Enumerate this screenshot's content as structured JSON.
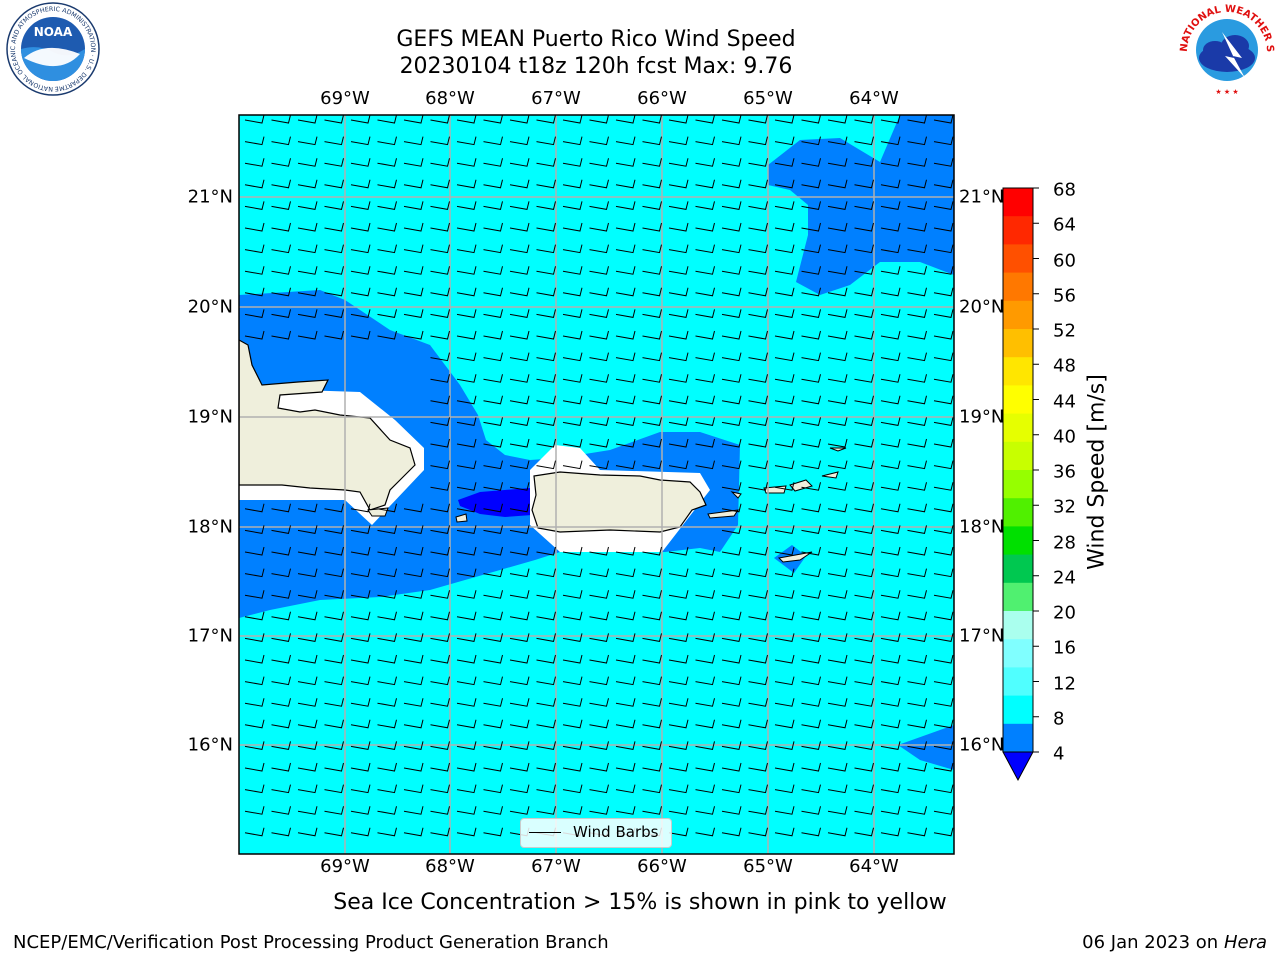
{
  "title": {
    "line1": "GEFS MEAN Puerto Rico Wind Speed",
    "line2": "20230104 t18z 120h fcst   Max: 9.76"
  },
  "map": {
    "lon_labels": [
      "69°W",
      "68°W",
      "67°W",
      "66°W",
      "65°W",
      "64°W"
    ],
    "lat_labels": [
      "21°N",
      "20°N",
      "19°N",
      "18°N",
      "17°N",
      "16°N"
    ],
    "colors": {
      "ocean_main": "#00ffff",
      "ocean_band": "#0080ff",
      "ocean_min": "#0000ff",
      "land": "#efefdc",
      "masked": "#ffffff",
      "grid": "#b0b0b0"
    },
    "legend_label": "Wind Barbs"
  },
  "colorbar": {
    "title": "Wind Speed [m/s]",
    "ticks": [
      "68",
      "64",
      "60",
      "56",
      "52",
      "48",
      "44",
      "40",
      "36",
      "32",
      "28",
      "24",
      "20",
      "16",
      "12",
      "8",
      "4"
    ],
    "colors_top_to_bottom": [
      "#ff0000",
      "#ff2800",
      "#ff5000",
      "#ff7800",
      "#ff9a00",
      "#ffbf00",
      "#ffe600",
      "#ffff00",
      "#e6ff00",
      "#c8ff00",
      "#96ff00",
      "#50f000",
      "#00e000",
      "#00c850",
      "#50f070",
      "#aaffee",
      "#80ffff",
      "#50ffff",
      "#00ffff",
      "#0080ff"
    ],
    "under_color": "#0000ff"
  },
  "subtitle": "Sea Ice Concentration > 15% is shown in pink to yellow",
  "footer": {
    "left": "NCEP/EMC/Verification Post Processing Product Generation Branch",
    "right_date": "06 Jan 2023 on ",
    "right_host": "Hera"
  },
  "logos": {
    "noaa_text": "NOAA",
    "noaa_ring": "NATIONAL OCEANIC AND ATMOSPHERIC ADMINISTRATION · U.S. DEPARTMENT OF COMMERCE",
    "nws_ring": "NATIONAL WEATHER SERVICE"
  }
}
